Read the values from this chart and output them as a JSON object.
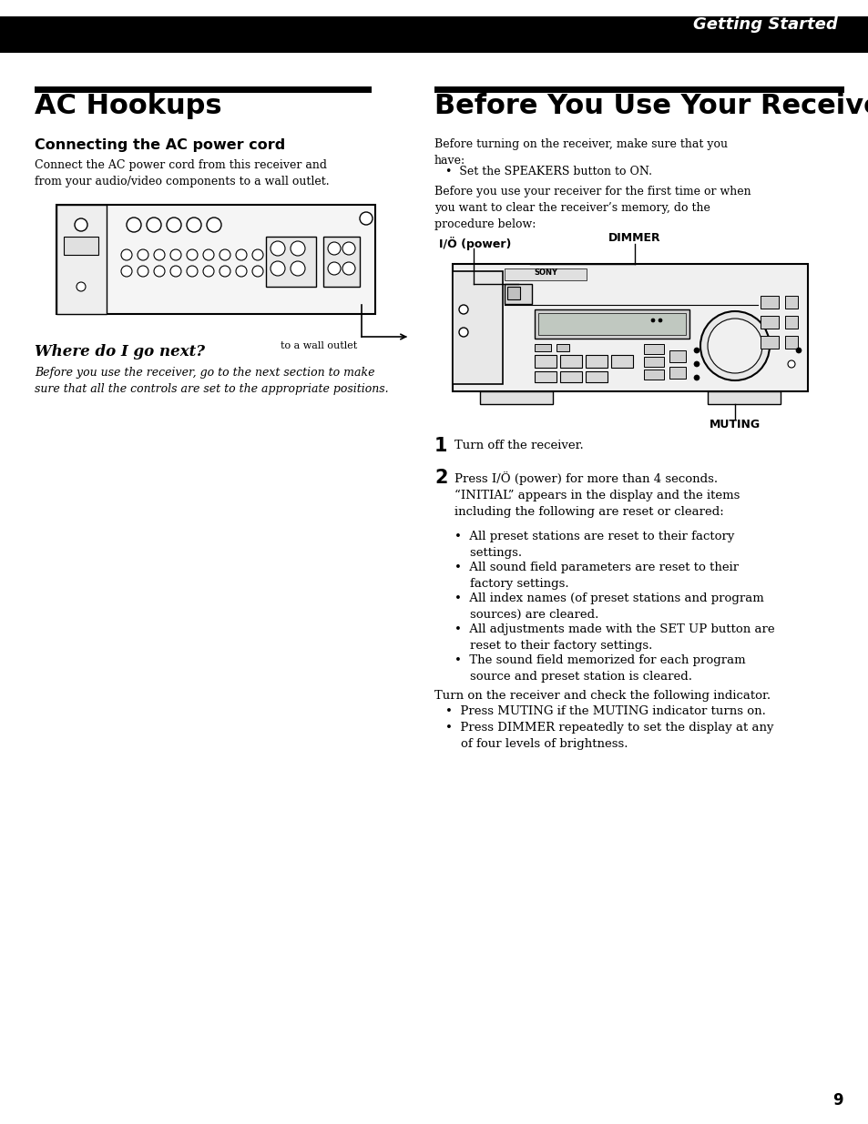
{
  "page_bg": "#ffffff",
  "header_bg": "#000000",
  "header_text": "Getting Started",
  "header_text_color": "#ffffff",
  "page_number": "9",
  "section_bar_color": "#000000",
  "ac_title": "AC Hookups",
  "ac_sub": "Connecting the AC power cord",
  "ac_body": "Connect the AC power cord from this receiver and\nfrom your audio/video components to a wall outlet.",
  "ac_wall_label": "to a wall outlet",
  "where_title": "Where do I go next?",
  "where_body": "Before you use the receiver, go to the next section to make\nsure that all the controls are set to the appropriate positions.",
  "before_title": "Before You Use Your Receiver",
  "before_intro": "Before turning on the receiver, make sure that you\nhave:",
  "before_bullet1": "•  Set the SPEAKERS button to ON.",
  "before_para2": "Before you use your receiver for the first time or when\nyou want to clear the receiver’s memory, do the\nprocedure below:",
  "dimmer_label": "DIMMER",
  "power_label": "I/Ö (power)",
  "muting_label": "MUTING",
  "step1_num": "1",
  "step1_text": "Turn off the receiver.",
  "step2_num": "2",
  "step2_text": "Press I/Ö (power) for more than 4 seconds.\n“INITIAL” appears in the display and the items\nincluding the following are reset or cleared:",
  "step2_bullets": [
    "•  All preset stations are reset to their factory\n    settings.",
    "•  All sound field parameters are reset to their\n    factory settings.",
    "•  All index names (of preset stations and program\n    sources) are cleared.",
    "•  All adjustments made with the SET UP button are\n    reset to their factory settings.",
    "•  The sound field memorized for each program\n    source and preset station is cleared."
  ],
  "turn_on_text": "Turn on the receiver and check the following indicator.",
  "turn_on_bullets": [
    "•  Press MUTING if the MUTING indicator turns on.",
    "•  Press DIMMER repeatedly to set the display at any\n    of four levels of brightness."
  ]
}
